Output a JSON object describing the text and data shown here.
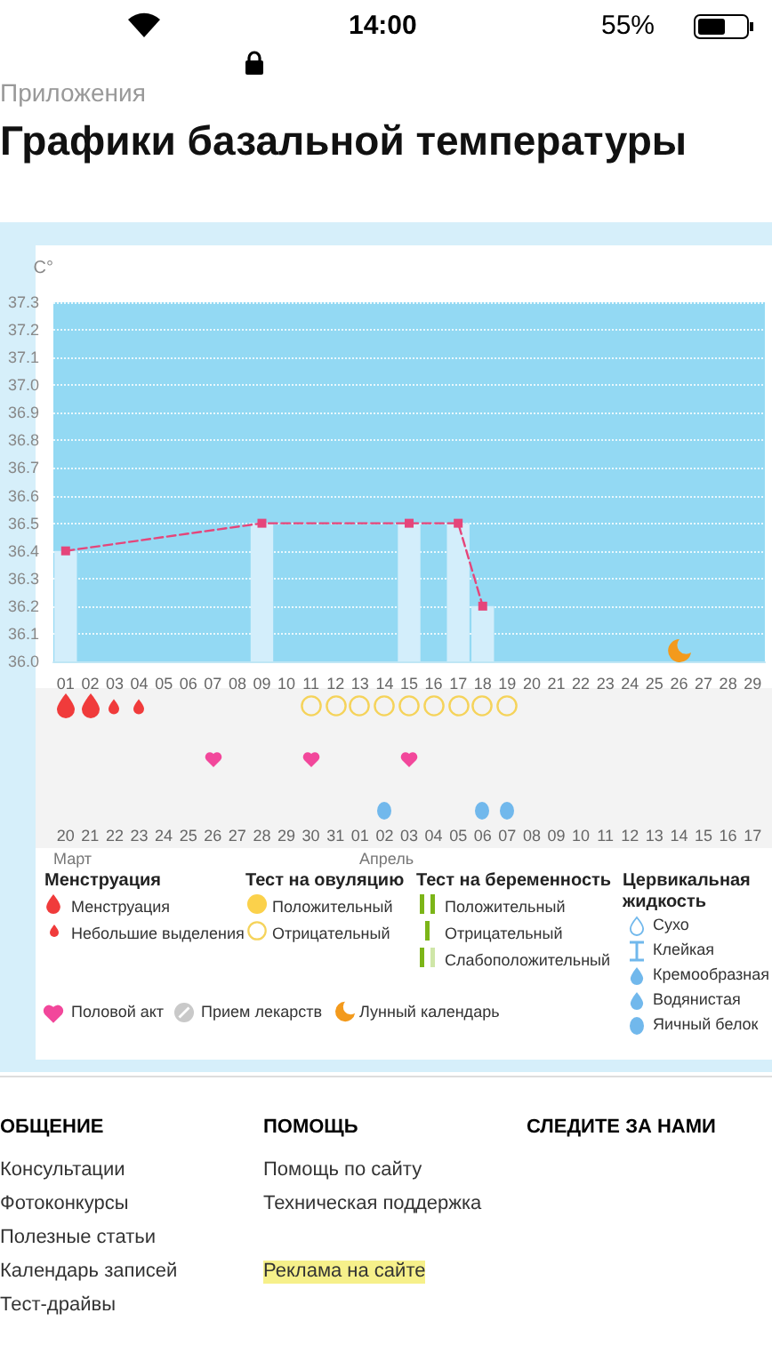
{
  "chart_data": {
    "type": "bar",
    "title": "Графики базальной температуры",
    "ylabel": "C°",
    "categories": [
      "01",
      "02",
      "03",
      "04",
      "05",
      "06",
      "07",
      "08",
      "09",
      "10",
      "11",
      "12",
      "13",
      "14",
      "15",
      "16",
      "17",
      "18",
      "19",
      "20",
      "21",
      "22",
      "23",
      "24",
      "25",
      "26",
      "27",
      "28",
      "29"
    ],
    "series": [
      {
        "color": "#d3eefb",
        "values": [
          36.4,
          null,
          null,
          null,
          null,
          null,
          null,
          null,
          36.5,
          null,
          null,
          null,
          null,
          null,
          36.5,
          null,
          36.5,
          36.2,
          null,
          null,
          null,
          null,
          null,
          null,
          null,
          null,
          null,
          null,
          null
        ]
      },
      {
        "type": "line",
        "color": "#e5457a",
        "values": [
          36.4,
          null,
          null,
          null,
          null,
          null,
          null,
          null,
          36.5,
          null,
          null,
          null,
          null,
          null,
          36.5,
          null,
          36.5,
          36.2,
          null,
          null,
          null,
          null,
          null,
          null,
          null,
          null,
          null,
          null,
          null
        ]
      }
    ],
    "ylim": [
      36.0,
      37.3
    ],
    "yticks": [
      {
        "value": 36.0,
        "label": "36.0"
      },
      36.1,
      36.2,
      36.3,
      36.4,
      36.5,
      36.6,
      36.7,
      36.8,
      36.9,
      {
        "value": 37.0,
        "label": "37.0"
      },
      37.1,
      37.2,
      37.3
    ],
    "grid": "y",
    "marker": "square",
    "line_style": "dashed",
    "annotations": [
      "14:00",
      "55%",
      "Приложения",
      "Март",
      "Апрель",
      "Менструация",
      "Менструация",
      "Небольшие выделения",
      "Тест на овуляцию",
      "Положительный",
      "Отрицательный",
      "Тест на беременность",
      "Положительный",
      "Отрицательный",
      "Слабоположительный",
      "Цервикальная жидкость",
      "Сухо",
      "Клейкая",
      "Кремообразная",
      "Водянистая",
      "Яичный белок",
      "Половой акт",
      "Прием лекарств",
      "Лунный календарь",
      "ОБЩЕНИЕ",
      "Консультации",
      "Фотоконкурсы",
      "Полезные статьи",
      "Календарь записей",
      "Тест-драйвы",
      "ПОМОЩЬ",
      "Помощь по сайту",
      "Техническая поддержка",
      "Реклама на сайте",
      "СЛЕДИТЕ ЗА НАМИ",
      "20",
      "21",
      "22",
      "23",
      "24",
      "25",
      "26",
      "27",
      "28",
      "29",
      "30",
      "31",
      "01",
      "02",
      "03",
      "04",
      "05",
      "06",
      "07",
      "08",
      "09",
      "10",
      "11",
      "12",
      "13",
      "14",
      "15",
      "16",
      "17"
    ]
  }
}
